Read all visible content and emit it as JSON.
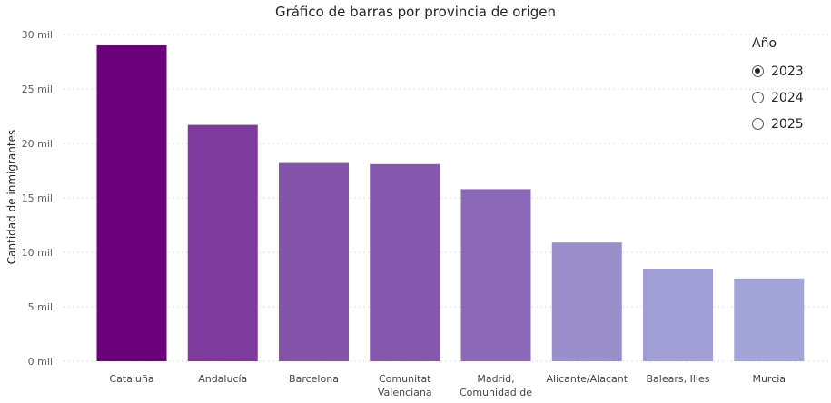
{
  "chart_data": {
    "type": "bar",
    "title": "Gráfico de barras por provincia de origen",
    "ylabel": "Cantidad de inmigrantes",
    "xlabel": "",
    "ylim": [
      0,
      30000
    ],
    "yticks": [
      {
        "value": 0,
        "label": "0 mil"
      },
      {
        "value": 5000,
        "label": "5 mil"
      },
      {
        "value": 10000,
        "label": "10 mil"
      },
      {
        "value": 15000,
        "label": "15 mil"
      },
      {
        "value": 20000,
        "label": "20 mil"
      },
      {
        "value": 25000,
        "label": "25 mil"
      },
      {
        "value": 30000,
        "label": "30 mil"
      }
    ],
    "categories": [
      [
        "Cataluña"
      ],
      [
        "Andalucía"
      ],
      [
        "Barcelona"
      ],
      [
        "Comunitat",
        "Valenciana"
      ],
      [
        "Madrid,",
        "Comunidad de"
      ],
      [
        "Alicante/Alacant"
      ],
      [
        "Balears, Illes"
      ],
      [
        "Murcia"
      ]
    ],
    "values": [
      29000,
      21700,
      18200,
      18100,
      15800,
      10900,
      8500,
      7600
    ],
    "colors": [
      "#6b007b",
      "#7e3a9c",
      "#8454ab",
      "#8557ad",
      "#8c69b8",
      "#9a8fca",
      "#a09ed4",
      "#a3a5d8"
    ],
    "grid": true
  },
  "legend": {
    "title": "Año",
    "items": [
      {
        "label": "2023",
        "selected": true
      },
      {
        "label": "2024",
        "selected": false
      },
      {
        "label": "2025",
        "selected": false
      }
    ]
  }
}
